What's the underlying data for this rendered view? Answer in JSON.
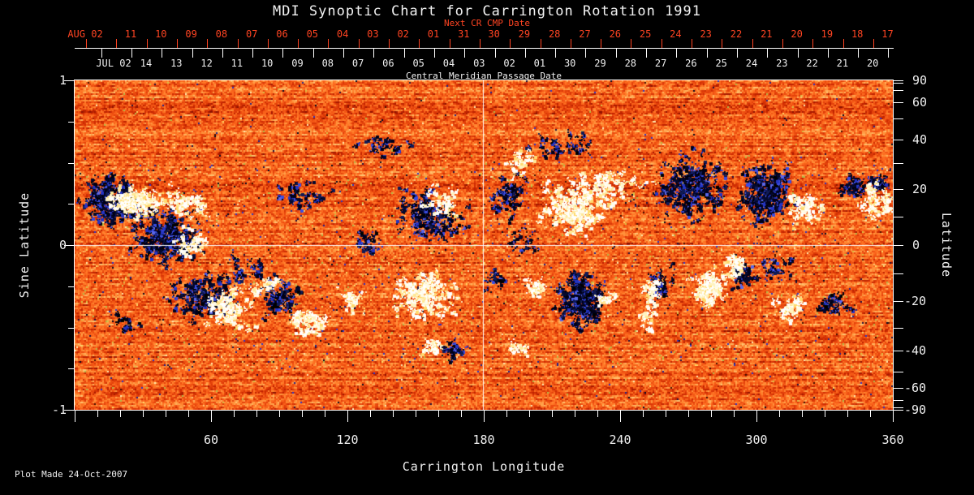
{
  "title": "MDI Synoptic Chart for Carrington Rotation 1991",
  "plot_made": "Plot Made 24-Oct-2007",
  "colors": {
    "background": "#000000",
    "foreground": "#f0f0f0",
    "accent_red": "#ff4422",
    "gridline": "#ffffff"
  },
  "chart_data": {
    "type": "heatmap",
    "title": "MDI Synoptic Chart for Carrington Rotation 1991",
    "xlabel": "Carrington Longitude",
    "ylabel_left": "Sine Latitude",
    "ylabel_right": "Latitude",
    "xlim": [
      0,
      360
    ],
    "ylim_sine": [
      -1,
      1
    ],
    "x_major_ticks": [
      60,
      120,
      180,
      240,
      300,
      360
    ],
    "x_minor_step_deg": 10,
    "left_major_ticks": [
      1,
      0,
      -1
    ],
    "left_minor_step_sine": 0.25,
    "right_labeled_ticks": [
      90,
      60,
      40,
      20,
      0,
      -20,
      -40,
      -60,
      -90
    ],
    "right_minor_step_deg": 10,
    "gridlines": {
      "equator_sine": 0,
      "meridian_deg": 180
    },
    "top_axis": {
      "next_cr_label": "Next CR CMP Date",
      "cmp_label": "Central Meridian Passage Date",
      "next_cr_month": "AUG 02",
      "next_cr_days": [
        "11",
        "10",
        "09",
        "08",
        "07",
        "06",
        "05",
        "04",
        "03",
        "02",
        "01",
        "31",
        "30",
        "29",
        "28",
        "27",
        "26",
        "25",
        "24",
        "23",
        "22",
        "21",
        "20",
        "19",
        "18",
        "17"
      ],
      "cmp_month": "JUL 02",
      "cmp_days": [
        "14",
        "13",
        "12",
        "11",
        "10",
        "09",
        "08",
        "07",
        "06",
        "05",
        "04",
        "03",
        "02",
        "01",
        "30",
        "29",
        "28",
        "27",
        "26",
        "25",
        "24",
        "23",
        "22",
        "21",
        "20"
      ]
    },
    "colormap": {
      "seed": 20071024,
      "base_ramp": [
        "#8c1200",
        "#a81a00",
        "#bf2300",
        "#cf2d03",
        "#da3807",
        "#e4420b",
        "#ec4d10",
        "#f35715",
        "#f8611a",
        "#fc6c20",
        "#ff7827",
        "#ff8530",
        "#ff933c",
        "#ffa24b",
        "#ffb25d",
        "#ffc472"
      ],
      "speck_yellow": [
        "#ffd966",
        "#d8c245",
        "#b0bc48",
        "#ffe9b0"
      ],
      "speck_dark": [
        "#2a35c8",
        "#1b2490",
        "#20103c",
        "#000820",
        "#401000"
      ],
      "negative_palette": [
        [
          "#000018",
          0.28
        ],
        [
          "#04082e",
          0.22
        ],
        [
          "#101b56",
          0.14
        ],
        [
          "#2434c4",
          0.14
        ],
        [
          "#3a4ce0",
          0.08
        ],
        [
          "#000000",
          0.1
        ],
        [
          "#5a66e8",
          0.04
        ]
      ],
      "positive_palette": [
        [
          "#ffffff",
          0.38
        ],
        [
          "#fffbe8",
          0.22
        ],
        [
          "#fff3c0",
          0.16
        ],
        [
          "#ffe896",
          0.14
        ],
        [
          "#ffda6e",
          0.1
        ]
      ]
    },
    "active_regions_format": [
      "carrington_lon_deg",
      "sine_latitude",
      "radius_lon_deg",
      "radius_sine",
      "density"
    ],
    "negative_regions": [
      [
        15.4,
        0.28,
        16.0,
        0.2,
        0.8
      ],
      [
        40.4,
        0.06,
        18.0,
        0.22,
        0.7
      ],
      [
        56.4,
        -0.31,
        20.0,
        0.17,
        0.45
      ],
      [
        90.4,
        -0.31,
        12.5,
        0.15,
        0.45
      ],
      [
        74.3,
        -0.14,
        11.0,
        0.1,
        0.25
      ],
      [
        156.4,
        0.18,
        20.0,
        0.2,
        0.45
      ],
      [
        190.4,
        0.3,
        11.0,
        0.15,
        0.45
      ],
      [
        197.5,
        0.01,
        9.0,
        0.1,
        0.25
      ],
      [
        270.7,
        0.36,
        20.0,
        0.25,
        0.5
      ],
      [
        302.9,
        0.3,
        16.0,
        0.22,
        0.75
      ],
      [
        222.5,
        -0.33,
        14.3,
        0.22,
        0.8
      ],
      [
        185.7,
        -0.21,
        5.4,
        0.07,
        0.5
      ],
      [
        258.2,
        -0.24,
        7.0,
        0.15,
        0.45
      ],
      [
        293.9,
        -0.19,
        5.4,
        0.1,
        0.8
      ],
      [
        342.9,
        0.36,
        6.4,
        0.09,
        0.8
      ],
      [
        333.2,
        -0.36,
        9.0,
        0.1,
        0.45
      ],
      [
        167.1,
        -0.63,
        7.0,
        0.06,
        0.7
      ],
      [
        310.0,
        -0.14,
        11.0,
        0.12,
        0.25
      ],
      [
        354.6,
        0.38,
        5.4,
        0.07,
        0.7
      ],
      [
        22.5,
        -0.46,
        9.0,
        0.07,
        0.3
      ],
      [
        127.9,
        0.01,
        9.0,
        0.1,
        0.25
      ],
      [
        99.3,
        0.3,
        14.3,
        0.12,
        0.25
      ],
      [
        217.1,
        0.6,
        21.4,
        0.1,
        0.2
      ],
      [
        138.6,
        0.6,
        17.9,
        0.1,
        0.18
      ]
    ],
    "positive_regions": [
      [
        26.1,
        0.27,
        16.0,
        0.12,
        0.8
      ],
      [
        51.1,
        0.01,
        11.0,
        0.1,
        0.35
      ],
      [
        67.1,
        -0.38,
        14.3,
        0.15,
        0.5
      ],
      [
        102.9,
        -0.46,
        11.0,
        0.12,
        0.5
      ],
      [
        85.0,
        -0.24,
        7.0,
        0.07,
        0.4
      ],
      [
        152.9,
        -0.29,
        18.0,
        0.2,
        0.5
      ],
      [
        161.8,
        0.26,
        11.0,
        0.12,
        0.3
      ],
      [
        220.7,
        0.23,
        20.0,
        0.22,
        0.5
      ],
      [
        195.7,
        0.5,
        11.0,
        0.1,
        0.3
      ],
      [
        202.9,
        -0.26,
        7.0,
        0.07,
        0.6
      ],
      [
        233.2,
        -0.33,
        5.4,
        0.06,
        0.7
      ],
      [
        252.9,
        -0.29,
        4.3,
        0.12,
        0.5
      ],
      [
        279.6,
        -0.26,
        9.0,
        0.15,
        0.8
      ],
      [
        251.1,
        -0.46,
        3.6,
        0.09,
        0.5
      ],
      [
        290.4,
        -0.14,
        5.4,
        0.1,
        0.8
      ],
      [
        320.7,
        0.21,
        11.0,
        0.12,
        0.45
      ],
      [
        350.0,
        0.33,
        4.3,
        0.06,
        0.7
      ],
      [
        351.1,
        0.23,
        6.4,
        0.07,
        0.5
      ],
      [
        315.4,
        -0.38,
        10.0,
        0.1,
        0.45
      ],
      [
        49.3,
        0.26,
        16.0,
        0.12,
        0.3
      ],
      [
        120.7,
        -0.33,
        9.0,
        0.1,
        0.35
      ],
      [
        156.4,
        -0.61,
        5.4,
        0.05,
        0.8
      ],
      [
        195.7,
        -0.63,
        9.0,
        0.05,
        0.35
      ],
      [
        235.0,
        0.38,
        21.4,
        0.12,
        0.25
      ],
      [
        356.4,
        0.26,
        3.6,
        0.1,
        0.7
      ]
    ]
  }
}
